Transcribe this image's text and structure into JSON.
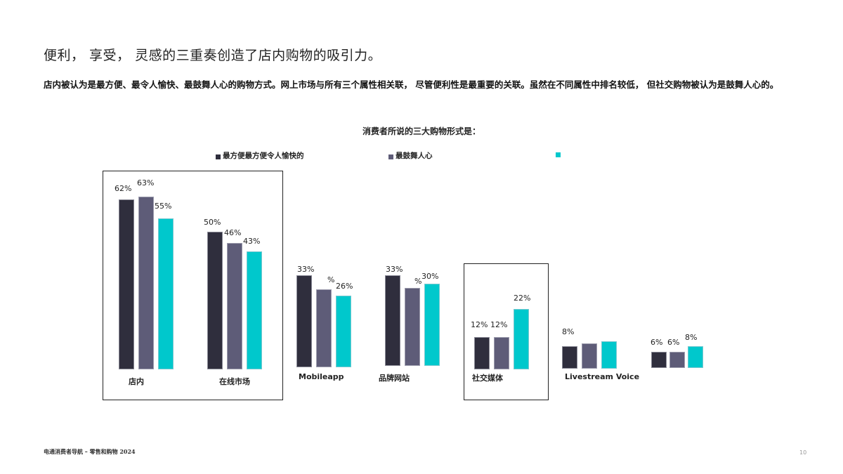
{
  "page": {
    "title": "便利， 享受， 灵感的三重奏创造了店内购物的吸引力。",
    "description": "店内被认为是最方便、最令人愉快、最鼓舞人心的购物方式。网上市场与所有三个属性相关联， 尽管便利性是最重要的关联。虽然在不同属性中排名较低， 但社交购物被认为是鼓舞人心的。",
    "footer_left": "电通消费者导航 – 零售和购物 2024",
    "page_number": "10"
  },
  "colors": {
    "series1": "#2f2e3d",
    "series2": "#5e5c78",
    "series3": "#00c8cc",
    "box": "#222222"
  },
  "chart_data": {
    "type": "bar",
    "title": "消费者所说的三大购物形式是：",
    "xlabel": "",
    "ylabel": "",
    "ylim": [
      0,
      70
    ],
    "grid": false,
    "legend_position": "top",
    "categories": [
      "店内",
      "在线市场",
      "Mobileapp",
      "品牌网站",
      "社交媒体",
      "Livestream Voice",
      ""
    ],
    "series": [
      {
        "name": "最方便最方便令人愉快的",
        "values": [
          62,
          50,
          33,
          33,
          12,
          8,
          6
        ],
        "labels": [
          "62%",
          "50%",
          "33%",
          "33%",
          "12%",
          "8%",
          "6%"
        ]
      },
      {
        "name": "最鼓舞人心",
        "values": [
          63,
          46,
          28,
          29,
          12,
          9,
          6
        ],
        "labels": [
          "63%",
          "46%",
          "%",
          "%",
          "12%",
          "",
          "6%"
        ]
      },
      {
        "name": "",
        "values": [
          55,
          43,
          26,
          30,
          22,
          10,
          8
        ],
        "labels": [
          "55%",
          "43%",
          "26%",
          "30%",
          "22%",
          "",
          "8%"
        ]
      }
    ],
    "highlighted_categories": [
      "店内",
      "在线市场",
      "社交媒体"
    ]
  }
}
